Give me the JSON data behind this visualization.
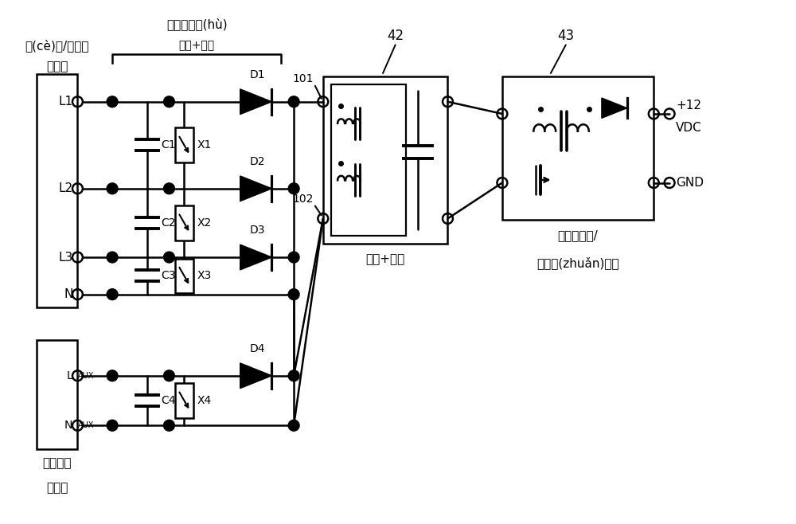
{
  "bg_color": "#ffffff",
  "line_color": "#000000",
  "line_width": 1.8,
  "fig_width": 10.0,
  "fig_height": 6.58,
  "labels": {
    "meas_input_line1": "測(cè)量/自供電",
    "meas_input_line2": "輸入端",
    "protection_line1": "輸入端保護(hù)",
    "protection_line2": "電路+整流",
    "filter_label": "濾波+平滑",
    "converter_label_line1": "隔離的直流/",
    "converter_label_line2": "直流轉(zhuǎn)換器",
    "aux_input_line1": "輔助供電",
    "aux_input_line2": "輸入端",
    "label_42": "42",
    "label_43": "43",
    "label_101": "101",
    "label_102": "102",
    "plus12": "+12",
    "vdc": "VDC",
    "gnd": "GND"
  }
}
